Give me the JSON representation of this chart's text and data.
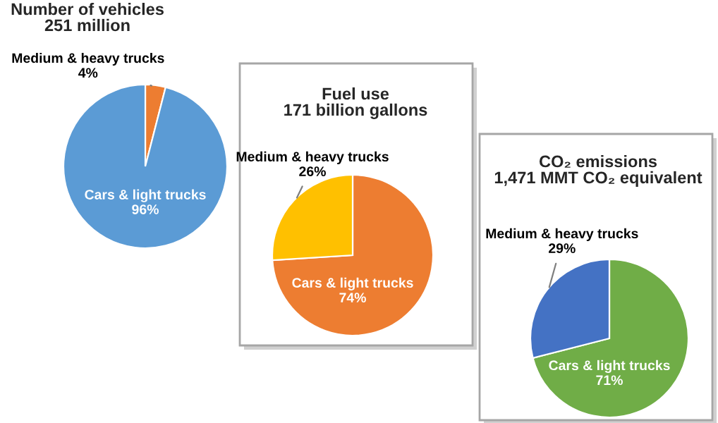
{
  "chart_data": [
    {
      "type": "pie",
      "title": "Number of vehicles",
      "subtitle": "251 million",
      "categories": [
        "Medium & heavy trucks",
        "Cars & light trucks"
      ],
      "values": [
        4,
        96
      ],
      "value_labels": [
        "4%",
        "96%"
      ],
      "colors": [
        "#ed7d31",
        "#5b9bd5"
      ]
    },
    {
      "type": "pie",
      "title": "Fuel use",
      "subtitle": "171 billion gallons",
      "categories": [
        "Cars & light trucks",
        "Medium & heavy trucks"
      ],
      "values": [
        74,
        26
      ],
      "value_labels": [
        "74%",
        "26%"
      ],
      "colors": [
        "#ed7d31",
        "#ffc000"
      ]
    },
    {
      "type": "pie",
      "title": "CO₂ emissions",
      "subtitle": "1,471 MMT CO₂ equivalent",
      "categories": [
        "Cars & light trucks",
        "Medium & heavy trucks"
      ],
      "values": [
        71,
        29
      ],
      "value_labels": [
        "71%",
        "29%"
      ],
      "colors": [
        "#70ad47",
        "#4472c4"
      ]
    }
  ]
}
